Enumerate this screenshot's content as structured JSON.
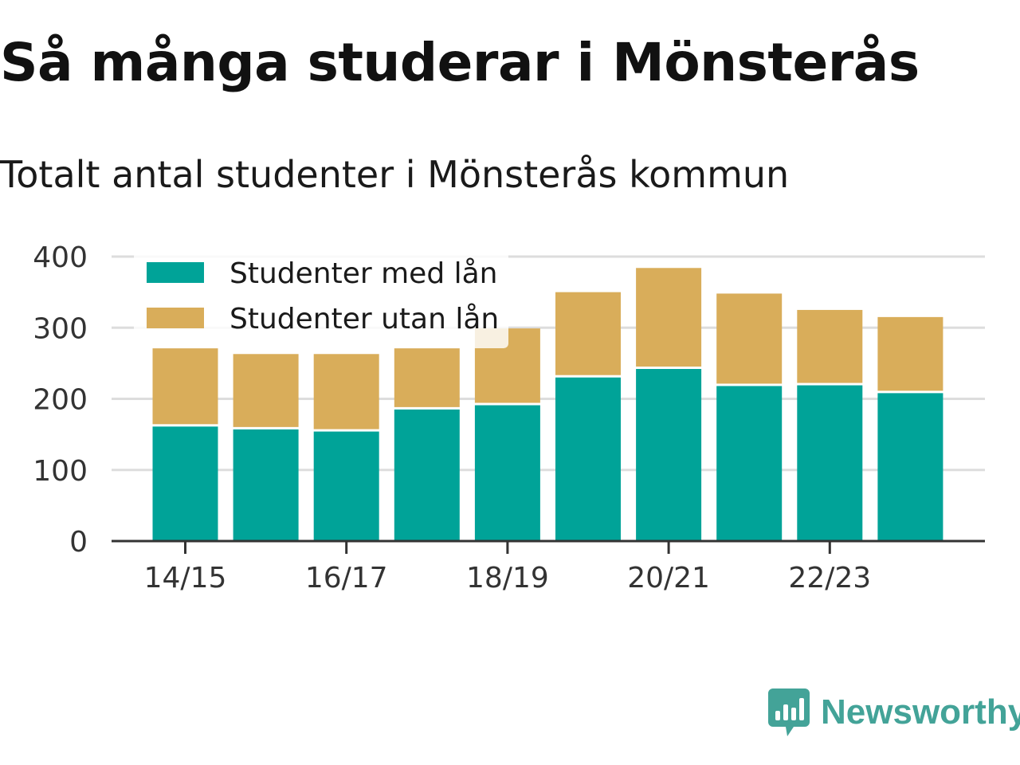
{
  "title": "Så många studerar i Mönsterås",
  "subtitle": "Totalt antal studenter i Mönsterås kommun",
  "brand": {
    "name": "Newsworthy",
    "icon": "newsworthy-logo-icon",
    "color": "#43a398"
  },
  "colors": {
    "with_loan": "#00a398",
    "without_loan": "#d9ad5a",
    "grid": "#dddddd",
    "axis": "#333333"
  },
  "chart_data": {
    "type": "bar",
    "stacked": true,
    "categories": [
      "14/15",
      "15/16",
      "16/17",
      "17/18",
      "18/19",
      "19/20",
      "20/21",
      "21/22",
      "22/23",
      "23/24"
    ],
    "x_tick_labels": [
      "14/15",
      "16/17",
      "18/19",
      "20/21",
      "22/23"
    ],
    "series": [
      {
        "name": "Studenter med lån",
        "values": [
          161,
          157,
          154,
          185,
          191,
          230,
          242,
          218,
          219,
          208
        ]
      },
      {
        "name": "Studenter utan lån",
        "values": [
          110,
          106,
          109,
          86,
          108,
          120,
          142,
          130,
          106,
          107
        ]
      }
    ],
    "ylim": [
      0,
      400
    ],
    "y_ticks": [
      0,
      100,
      200,
      300,
      400
    ],
    "grid": true,
    "legend_position": "top-left"
  }
}
